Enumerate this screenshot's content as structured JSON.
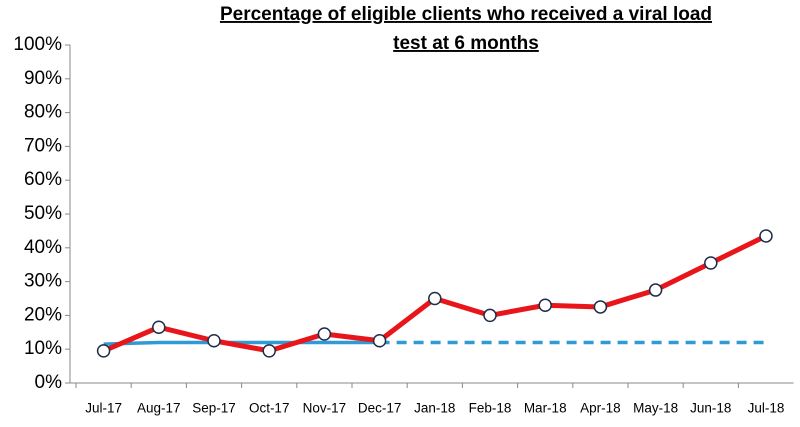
{
  "chart_data": {
    "type": "line",
    "title": [
      "Percentage of eligible clients who received a viral load",
      "test at 6 months"
    ],
    "categories": [
      "Jul-17",
      "Aug-17",
      "Sep-17",
      "Oct-17",
      "Nov-17",
      "Dec-17",
      "Jan-18",
      "Feb-18",
      "Mar-18",
      "Apr-18",
      "May-18",
      "Jun-18",
      "Jul-18"
    ],
    "series": [
      {
        "color": "#e8161b",
        "markers": true,
        "dashed": false,
        "values": [
          9.5,
          16.5,
          12.5,
          9.5,
          14.5,
          12.5,
          25,
          20,
          23,
          22.5,
          27.5,
          35.5,
          43.5
        ]
      },
      {
        "color": "#2e9bd6",
        "markers": false,
        "dashed": false,
        "values": [
          11.5,
          12,
          12,
          12,
          12,
          12,
          null,
          null,
          null,
          null,
          null,
          null,
          null
        ]
      },
      {
        "color": "#2e9bd6",
        "markers": false,
        "dashed": true,
        "values": [
          null,
          null,
          null,
          null,
          null,
          12,
          12,
          12,
          12,
          12,
          12,
          12,
          12
        ]
      }
    ],
    "ylim": [
      0,
      100
    ],
    "yticks": [
      {
        "value": 0,
        "label": "0%"
      },
      {
        "value": 10,
        "label": "10%"
      },
      {
        "value": 20,
        "label": "20%"
      },
      {
        "value": 30,
        "label": "30%"
      },
      {
        "value": 40,
        "label": "40%"
      },
      {
        "value": 50,
        "label": "50%"
      },
      {
        "value": 60,
        "label": "60%"
      },
      {
        "value": 70,
        "label": "70%"
      },
      {
        "value": 80,
        "label": "80%"
      },
      {
        "value": 90,
        "label": "90%"
      },
      {
        "value": 100,
        "label": "100%"
      }
    ],
    "grid": false
  }
}
